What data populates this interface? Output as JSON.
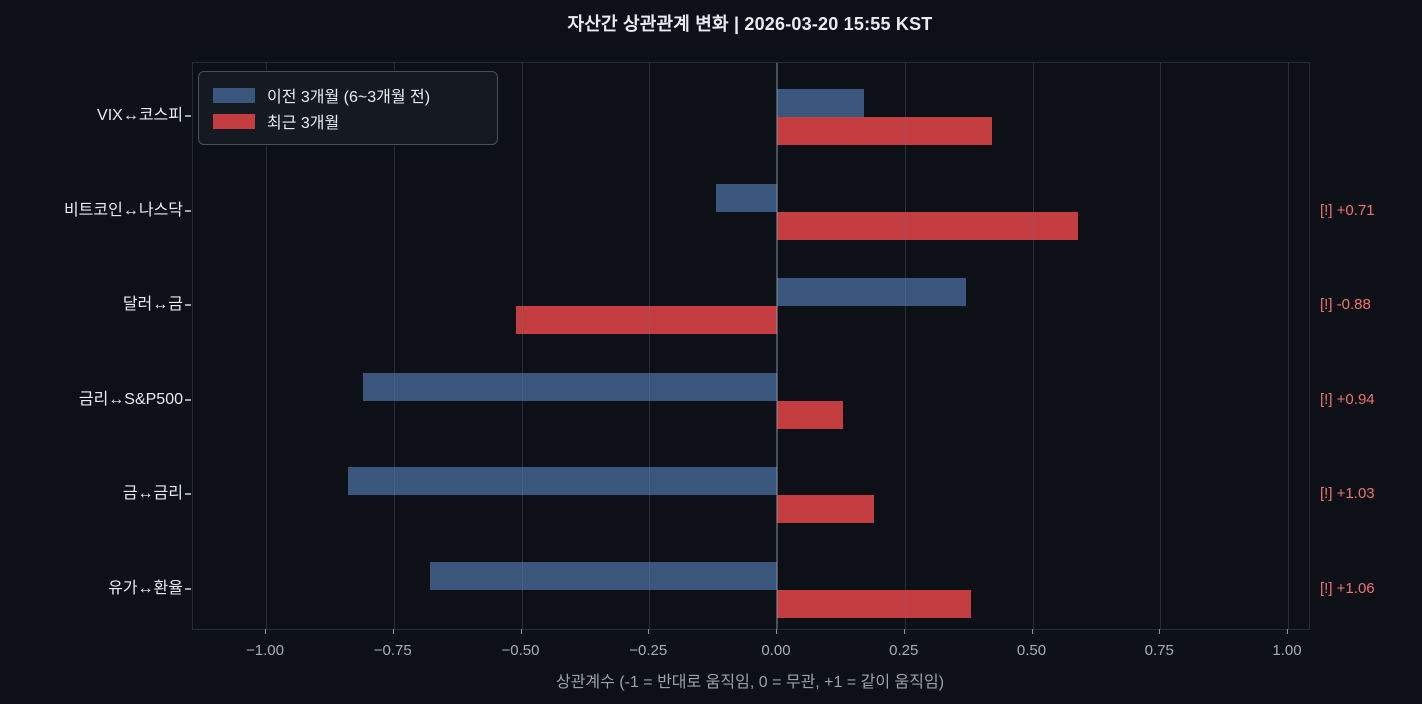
{
  "chart_data": {
    "type": "bar",
    "orientation": "horizontal",
    "title": "자산간 상관관계 변화  |  2026-03-20 15:55 KST",
    "title_text": "자산간 상관관계 변화",
    "timestamp": "2026-03-20 15:55 KST",
    "categories": [
      "VIX↔코스피",
      "비트코인↔나스닥",
      "달러↔금",
      "금리↔S&P500",
      "금↔금리",
      "유가↔환율"
    ],
    "series": [
      {
        "name": "이전 3개월 (6~3개월 전)",
        "color": "#3a567d",
        "values": [
          0.17,
          -0.12,
          0.37,
          -0.81,
          -0.84,
          -0.68
        ]
      },
      {
        "name": "최근 3개월",
        "color": "#c43d41",
        "values": [
          0.42,
          0.59,
          -0.51,
          0.13,
          0.19,
          0.38
        ]
      }
    ],
    "annotations": [
      null,
      "[!] +0.71",
      "[!] -0.88",
      "[!] +0.94",
      "[!] +1.03",
      "[!] +1.06"
    ],
    "xlabel": "상관계수 (-1 = 반대로 움직임, 0 = 무관, +1 = 같이 움직임)",
    "x_ticks": [
      -1.0,
      -0.75,
      -0.5,
      -0.25,
      0.0,
      0.25,
      0.5,
      0.75,
      1.0
    ],
    "x_tick_labels": [
      "−1.00",
      "−0.75",
      "−0.50",
      "−0.25",
      "0.00",
      "0.25",
      "0.50",
      "0.75",
      "1.00"
    ],
    "xlim": [
      -1.14,
      1.04
    ],
    "grid": true,
    "legend_position": "upper left"
  },
  "colors": {
    "background": "#0d1117",
    "series_prev": "#3a567d",
    "series_recent": "#c43d41",
    "annotation_text": "#f17171",
    "grid_line": "#1f2430",
    "zero_line": "#3e4452",
    "spine": "#262c36",
    "tick_label": "#a6adb6",
    "axis_label": "#9aa1ab",
    "category_label": "#e8eaed",
    "title_text_color": "#e9edf2",
    "legend_bg": "#141922",
    "legend_border": "#4a5059"
  }
}
